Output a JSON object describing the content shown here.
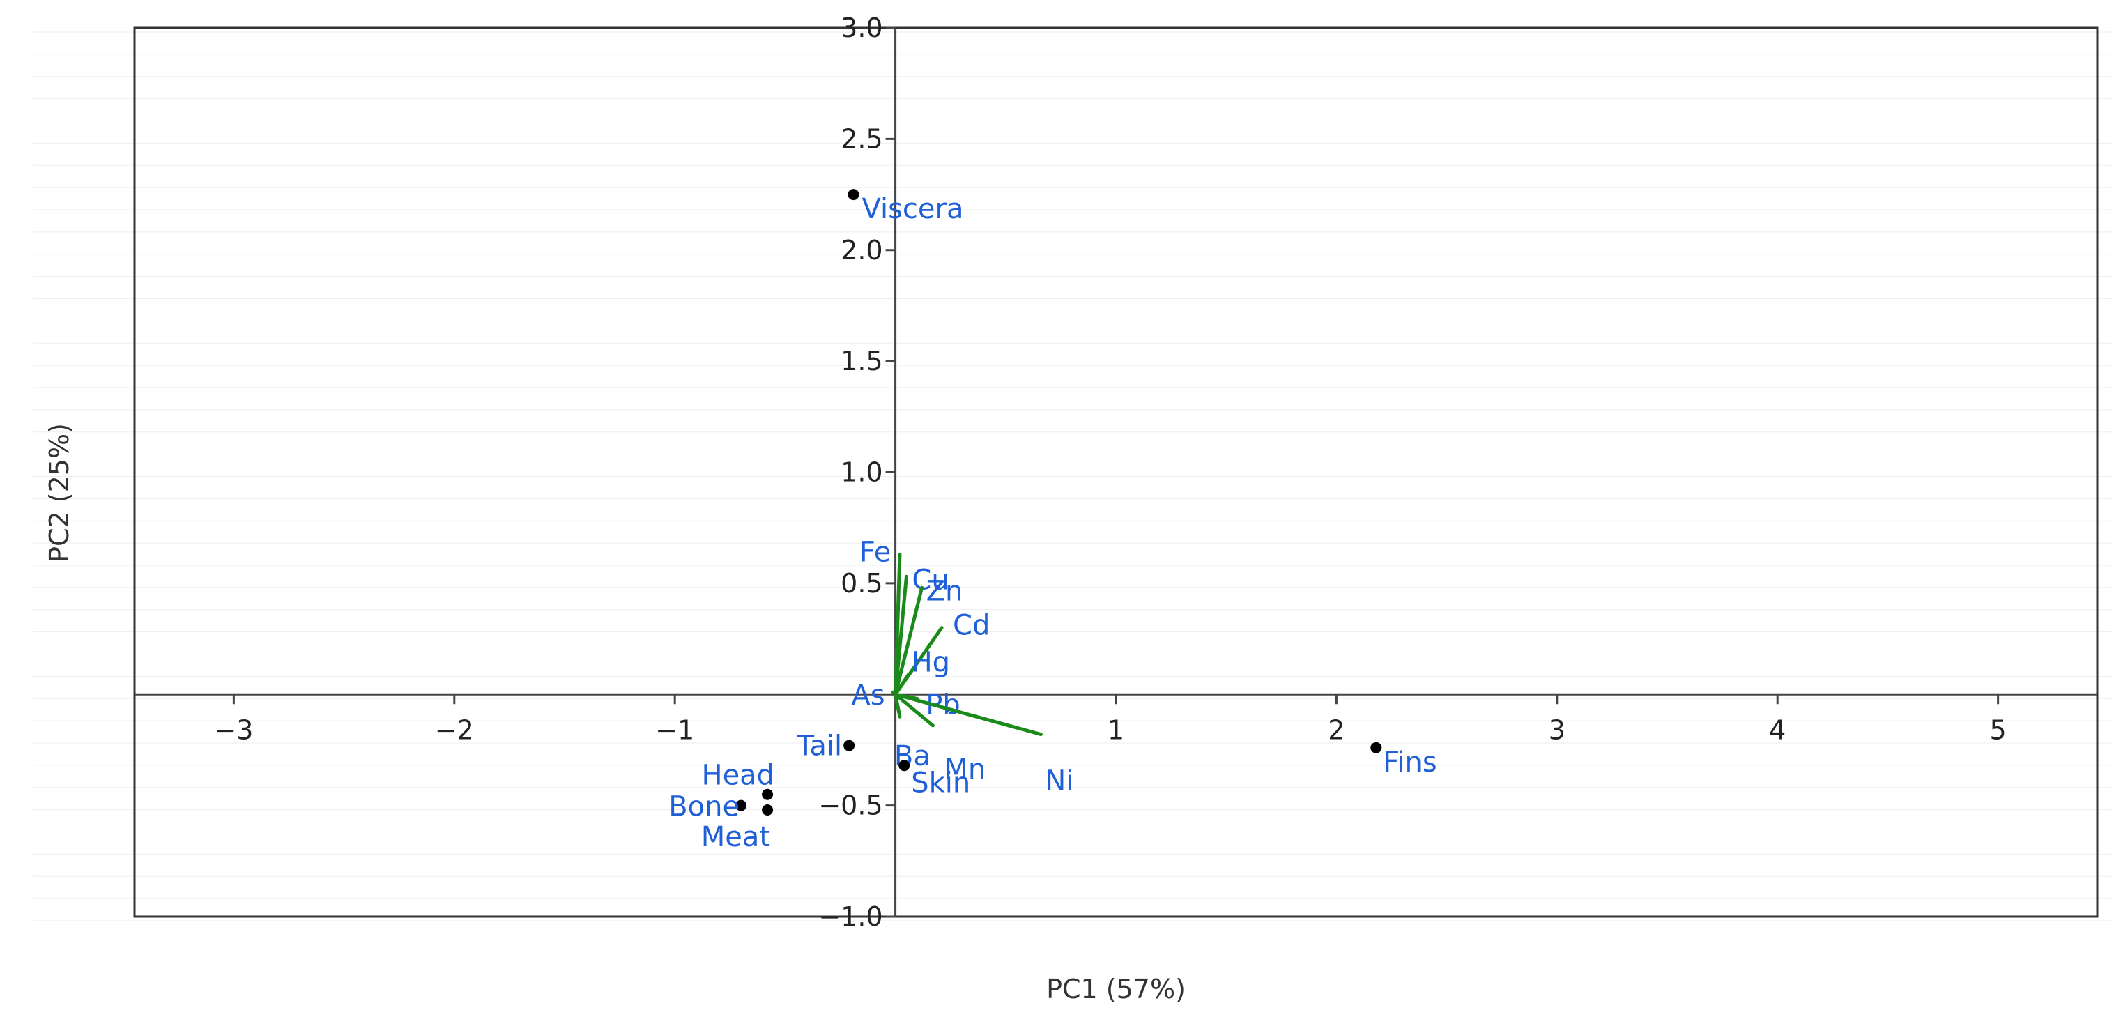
{
  "chart_data": {
    "type": "scatter",
    "subtype": "pca-biplot",
    "title": "",
    "xlabel": "PC1 (57%)",
    "ylabel": "PC2 (25%)",
    "xlim": [
      -3.45,
      5.45
    ],
    "ylim": [
      -1.0,
      3.0
    ],
    "xticks": [
      -3,
      -2,
      -1,
      1,
      2,
      3,
      4,
      5
    ],
    "yticks": [
      -1.0,
      -0.5,
      0.5,
      1.0,
      1.5,
      2.0,
      2.5,
      3.0
    ],
    "xtick_labels": [
      "−3",
      "−2",
      "−1",
      "1",
      "2",
      "3",
      "4",
      "5"
    ],
    "ytick_labels": [
      "−1.0",
      "−0.5",
      "0.5",
      "1.0",
      "1.5",
      "2.0",
      "2.5",
      "3.0"
    ],
    "grid": false,
    "colors": {
      "score_marker": "#000000",
      "label": "#1f5fd8",
      "loading_arrow": "#1a8a1a",
      "axis_line": "#444444",
      "frame": "#333333",
      "guide_lines": "#eeeeee"
    },
    "scores": [
      {
        "label": "Viscera",
        "x": -0.19,
        "y": 2.25
      },
      {
        "label": "Fins",
        "x": 2.18,
        "y": -0.24
      },
      {
        "label": "Tail",
        "x": -0.21,
        "y": -0.23
      },
      {
        "label": "Skin",
        "x": 0.04,
        "y": -0.32
      },
      {
        "label": "Head",
        "x": -0.58,
        "y": -0.45
      },
      {
        "label": "Bone",
        "x": -0.7,
        "y": -0.5
      },
      {
        "label": "Meat",
        "x": -0.58,
        "y": -0.52
      }
    ],
    "loadings": [
      {
        "label": "Fe",
        "x": 0.02,
        "y": 0.63
      },
      {
        "label": "Cu",
        "x": 0.05,
        "y": 0.53
      },
      {
        "label": "Zn",
        "x": 0.12,
        "y": 0.48
      },
      {
        "label": "Cd",
        "x": 0.21,
        "y": 0.3
      },
      {
        "label": "Hg",
        "x": 0.06,
        "y": 0.09
      },
      {
        "label": "As",
        "x": -0.01,
        "y": 0.01
      },
      {
        "label": "Pb",
        "x": 0.1,
        "y": -0.02
      },
      {
        "label": "Ba",
        "x": 0.02,
        "y": -0.1
      },
      {
        "label": "Mn",
        "x": 0.17,
        "y": -0.14
      },
      {
        "label": "Ni",
        "x": 0.66,
        "y": -0.18
      }
    ]
  }
}
